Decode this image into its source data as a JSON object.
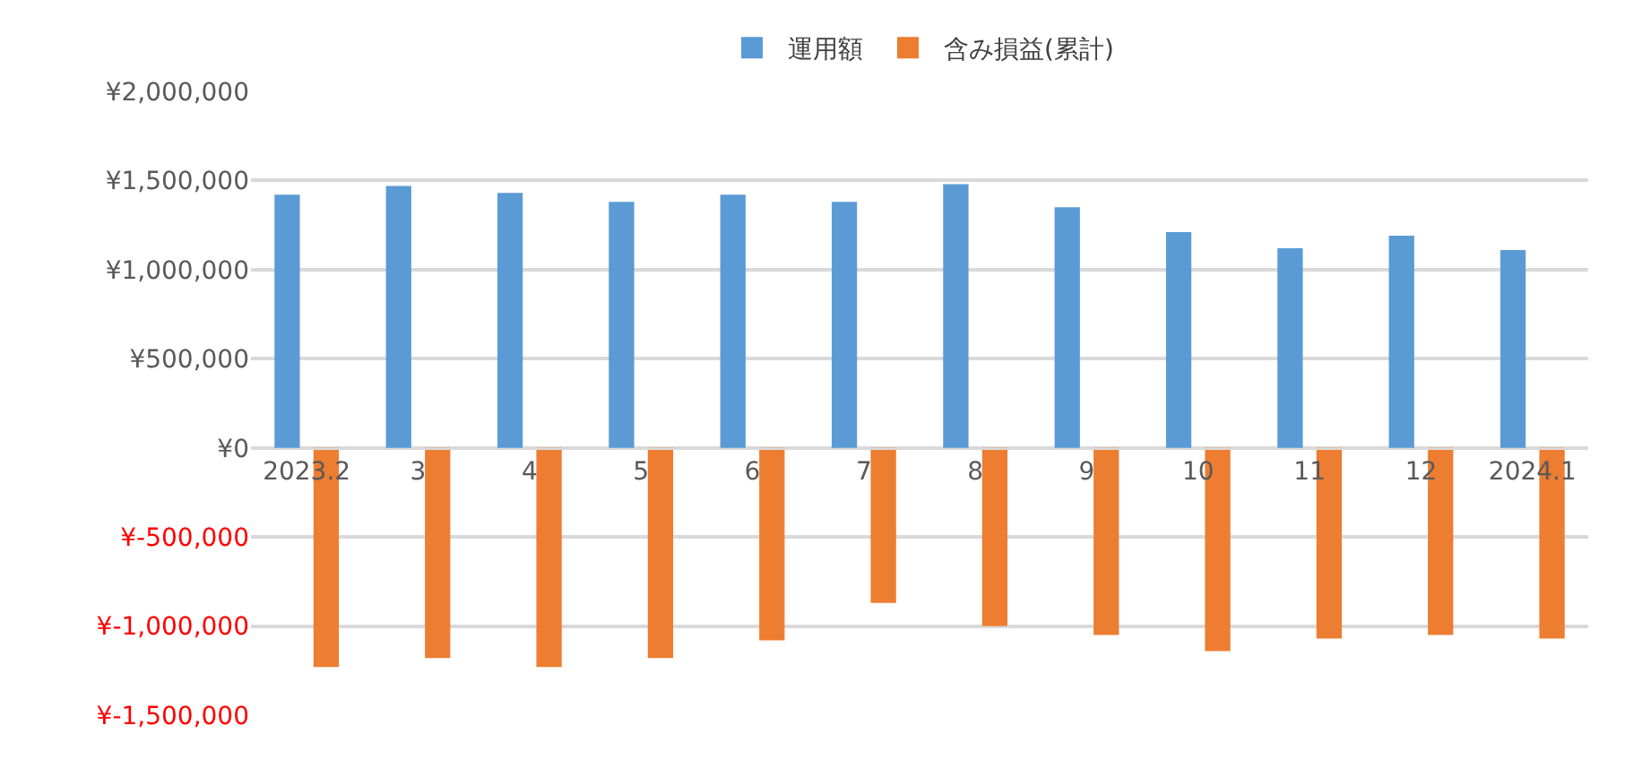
{
  "chart_data": {
    "type": "bar",
    "categories": [
      "2023.2",
      "3",
      "4",
      "5",
      "6",
      "7",
      "8",
      "9",
      "10",
      "11",
      "12",
      "2024.1"
    ],
    "series": [
      {
        "name": "運用額",
        "color": "#5b9bd5",
        "values": [
          1420000,
          1470000,
          1430000,
          1380000,
          1420000,
          1380000,
          1480000,
          1350000,
          1210000,
          1120000,
          1190000,
          1110000
        ]
      },
      {
        "name": "含み損益(累計)",
        "color": "#ed7d31",
        "values": [
          -1230000,
          -1180000,
          -1230000,
          -1180000,
          -1080000,
          -870000,
          -1000000,
          -1050000,
          -1140000,
          -1070000,
          -1050000,
          -1070000
        ]
      }
    ],
    "ylim": [
      -1500000,
      2000000
    ],
    "yticks": [
      {
        "value": -1500000,
        "label": "¥-1,500,000"
      },
      {
        "value": -1000000,
        "label": "¥-1,000,000"
      },
      {
        "value": -500000,
        "label": "¥-500,000"
      },
      {
        "value": 0,
        "label": "¥0"
      },
      {
        "value": 500000,
        "label": "¥500,000"
      },
      {
        "value": 1000000,
        "label": "¥1,000,000"
      },
      {
        "value": 1500000,
        "label": "¥1,500,000"
      },
      {
        "value": 2000000,
        "label": "¥2,000,000"
      }
    ],
    "grid": "y",
    "legend": "top"
  }
}
